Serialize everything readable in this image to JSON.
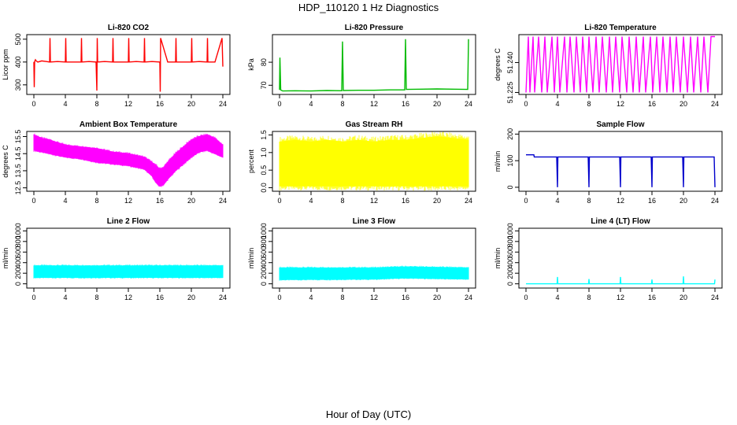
{
  "title": "HDP_110120  1 Hz Diagnostics",
  "xlabel": "Hour of Day (UTC)",
  "chart_data": [
    {
      "type": "line",
      "title": "Li-820 CO2",
      "ylabel": "Licor ppm",
      "color": "#ff0000",
      "xlim": [
        0,
        24
      ],
      "ylim": [
        258,
        520
      ],
      "xticks": [
        "0",
        "4",
        "8",
        "12",
        "16",
        "20",
        "24"
      ],
      "yticks": [
        "300",
        "400",
        "500"
      ],
      "series": [
        {
          "x": [
            0,
            0.05,
            0.1,
            0.2,
            0.3,
            0.5,
            1.0,
            1.6,
            2.0,
            2.05,
            2.1,
            3.0,
            4.0,
            4.05,
            4.1,
            5.0,
            6.0,
            6.05,
            6.1,
            7.0,
            7.9,
            8.0,
            8.05,
            8.1,
            9.0,
            10.0,
            10.05,
            10.1,
            11.0,
            12.0,
            12.05,
            12.1,
            13.0,
            14.0,
            14.05,
            14.1,
            15.0,
            16.0,
            16.05,
            16.1,
            17.0,
            18.0,
            18.05,
            18.1,
            19.0,
            20.0,
            20.05,
            20.1,
            21.0,
            22.0,
            22.05,
            22.1,
            23.0,
            23.9,
            24.0
          ],
          "y": [
            400,
            290,
            402,
            410,
            405,
            400,
            405,
            402,
            400,
            505,
            400,
            402,
            400,
            505,
            400,
            400,
            400,
            505,
            400,
            402,
            400,
            275,
            505,
            400,
            402,
            400,
            505,
            400,
            400,
            400,
            505,
            400,
            402,
            400,
            505,
            400,
            402,
            400,
            270,
            505,
            400,
            400,
            505,
            400,
            400,
            400,
            505,
            400,
            402,
            400,
            505,
            400,
            400,
            505,
            380
          ]
        }
      ]
    },
    {
      "type": "line",
      "title": "Li-820 Pressure",
      "ylabel": "kPa",
      "color": "#00bb00",
      "xlim": [
        0,
        24
      ],
      "ylim": [
        66,
        92
      ],
      "xticks": [
        "0",
        "4",
        "8",
        "12",
        "16",
        "20",
        "24"
      ],
      "yticks": [
        "70",
        "80"
      ],
      "series": [
        {
          "x": [
            0,
            0.05,
            0.15,
            0.4,
            2.0,
            4.0,
            6.0,
            7.9,
            8.0,
            8.1,
            10.0,
            12.0,
            14.0,
            15.9,
            16.0,
            16.1,
            18.0,
            20.0,
            22.0,
            23.9,
            24.0
          ],
          "y": [
            68,
            82,
            68,
            67.5,
            67.6,
            67.5,
            67.7,
            67.6,
            89,
            67.7,
            67.8,
            67.8,
            68,
            68,
            90,
            68.2,
            68.3,
            68.4,
            68.3,
            68.2,
            90
          ]
        }
      ]
    },
    {
      "type": "line",
      "title": "Li-820 Temperature",
      "ylabel": "degrees C",
      "color": "#ff00ff",
      "xlim": [
        0,
        24
      ],
      "ylim": [
        51.224,
        51.254
      ],
      "xticks": [
        "0",
        "4",
        "8",
        "12",
        "16",
        "20",
        "24"
      ],
      "yticks": [
        "51.225",
        "51.240"
      ],
      "series": [
        {
          "x": [
            0,
            0.3,
            0.5,
            0.9,
            1.1,
            1.6,
            2.0,
            2.4,
            2.7,
            3.3,
            3.6,
            4.0,
            4.3,
            4.9,
            5.2,
            5.6,
            6.1,
            6.4,
            6.9,
            7.2,
            7.7,
            8.0,
            8.5,
            8.9,
            9.3,
            9.7,
            10.2,
            10.6,
            11.0,
            11.4,
            11.9,
            12.2,
            12.8,
            13.1,
            13.6,
            14.0,
            14.4,
            14.9,
            15.2,
            15.8,
            16.1,
            16.6,
            17.0,
            17.4,
            17.9,
            18.3,
            18.7,
            19.1,
            19.6,
            20.0,
            20.5,
            20.9,
            21.3,
            21.8,
            22.2,
            22.6,
            23.1,
            23.5,
            24.0
          ],
          "y": [
            51.225,
            51.253,
            51.225,
            51.253,
            51.225,
            51.253,
            51.225,
            51.253,
            51.225,
            51.253,
            51.225,
            51.253,
            51.225,
            51.253,
            51.225,
            51.253,
            51.225,
            51.253,
            51.225,
            51.253,
            51.225,
            51.253,
            51.225,
            51.253,
            51.225,
            51.253,
            51.225,
            51.253,
            51.225,
            51.253,
            51.225,
            51.253,
            51.225,
            51.253,
            51.225,
            51.253,
            51.225,
            51.253,
            51.225,
            51.253,
            51.225,
            51.253,
            51.225,
            51.253,
            51.225,
            51.253,
            51.225,
            51.253,
            51.225,
            51.253,
            51.225,
            51.253,
            51.225,
            51.253,
            51.225,
            51.253,
            51.225,
            51.253,
            51.253
          ]
        }
      ]
    },
    {
      "type": "area",
      "title": "Ambient Box Temperature",
      "ylabel": "degrees C",
      "color": "#ff00ff",
      "xlim": [
        0,
        24
      ],
      "ylim": [
        12.3,
        15.8
      ],
      "xticks": [
        "0",
        "4",
        "8",
        "12",
        "16",
        "20",
        "24"
      ],
      "yticks": [
        "12.5",
        "13.5",
        "14.5",
        "15.5"
      ],
      "series": [
        {
          "name": "upper",
          "x": [
            0,
            1,
            2,
            4,
            6,
            8,
            10,
            12,
            13,
            14,
            15,
            15.5,
            16,
            16.5,
            17,
            18,
            19,
            20,
            21,
            22,
            23,
            24
          ],
          "y": [
            15.6,
            15.4,
            15.3,
            15.0,
            14.9,
            14.8,
            14.6,
            14.5,
            14.4,
            14.3,
            14.0,
            13.8,
            13.6,
            13.7,
            14.0,
            14.5,
            14.9,
            15.3,
            15.5,
            15.6,
            15.4,
            15.0
          ]
        },
        {
          "name": "lower",
          "x": [
            0,
            1,
            2,
            4,
            6,
            8,
            10,
            12,
            13,
            14,
            15,
            15.5,
            16,
            16.5,
            17,
            18,
            19,
            20,
            21,
            22,
            23,
            24
          ],
          "y": [
            14.7,
            14.6,
            14.5,
            14.3,
            14.2,
            14.0,
            13.9,
            13.8,
            13.7,
            13.6,
            13.2,
            12.8,
            12.6,
            12.7,
            13.0,
            13.5,
            13.9,
            14.3,
            14.6,
            14.7,
            14.5,
            14.3
          ]
        }
      ]
    },
    {
      "type": "area",
      "title": "Gas Stream RH",
      "ylabel": "percent",
      "color": "#ffff00",
      "xlim": [
        0,
        24
      ],
      "ylim": [
        -0.1,
        1.6
      ],
      "xticks": [
        "0",
        "4",
        "8",
        "12",
        "16",
        "20",
        "24"
      ],
      "yticks": [
        "0.0",
        "0.5",
        "1.0",
        "1.5"
      ],
      "series": [
        {
          "name": "upper",
          "x": [
            0,
            2,
            4,
            6,
            8,
            10,
            12,
            14,
            16,
            18,
            20,
            22,
            24
          ],
          "y": [
            1.3,
            1.35,
            1.3,
            1.35,
            1.3,
            1.35,
            1.3,
            1.35,
            1.35,
            1.4,
            1.45,
            1.4,
            1.35
          ]
        },
        {
          "name": "lower",
          "x": [
            0,
            2,
            4,
            6,
            8,
            10,
            12,
            14,
            16,
            18,
            20,
            22,
            24
          ],
          "y": [
            0.05,
            0.05,
            0.05,
            0.05,
            0.05,
            0.05,
            0.05,
            0.05,
            0.05,
            0.05,
            0.05,
            0.05,
            0.05
          ]
        }
      ]
    },
    {
      "type": "line",
      "title": "Sample Flow",
      "ylabel": "ml/min",
      "color": "#0000cc",
      "xlim": [
        0,
        24
      ],
      "ylim": [
        -15,
        210
      ],
      "xticks": [
        "0",
        "4",
        "8",
        "12",
        "16",
        "20",
        "24"
      ],
      "yticks": [
        "0",
        "100",
        "200"
      ],
      "series": [
        {
          "x": [
            0,
            1.0,
            1.05,
            3.9,
            4.0,
            4.05,
            7.9,
            8.0,
            8.05,
            11.9,
            12.0,
            12.05,
            15.9,
            16.0,
            16.05,
            19.9,
            20.0,
            20.05,
            23.9,
            24.0
          ],
          "y": [
            122,
            122,
            114,
            114,
            0,
            114,
            114,
            0,
            114,
            114,
            0,
            114,
            114,
            0,
            114,
            114,
            0,
            114,
            114,
            0
          ]
        }
      ]
    },
    {
      "type": "area",
      "title": "Line 2 Flow",
      "ylabel": "ml/min",
      "color": "#00ffff",
      "xlim": [
        0,
        24
      ],
      "ylim": [
        -80,
        1050
      ],
      "xticks": [
        "0",
        "4",
        "8",
        "12",
        "16",
        "20",
        "24"
      ],
      "yticks": [
        "0",
        "200",
        "400",
        "600",
        "800",
        "1000"
      ],
      "series": [
        {
          "name": "upper",
          "x": [
            0,
            24
          ],
          "y": [
            340,
            340
          ]
        },
        {
          "name": "lower",
          "x": [
            0,
            24
          ],
          "y": [
            120,
            120
          ]
        }
      ]
    },
    {
      "type": "area",
      "title": "Line 3 Flow",
      "ylabel": "ml/min",
      "color": "#00ffff",
      "xlim": [
        0,
        24
      ],
      "ylim": [
        -80,
        1050
      ],
      "xticks": [
        "0",
        "4",
        "8",
        "12",
        "16",
        "20",
        "24"
      ],
      "yticks": [
        "0",
        "200",
        "400",
        "600",
        "800",
        "1000"
      ],
      "series": [
        {
          "name": "upper",
          "x": [
            0,
            12,
            16,
            20,
            24
          ],
          "y": [
            300,
            300,
            320,
            310,
            300
          ]
        },
        {
          "name": "lower",
          "x": [
            0,
            12,
            16,
            20,
            24
          ],
          "y": [
            80,
            90,
            110,
            100,
            90
          ]
        }
      ]
    },
    {
      "type": "line",
      "title": "Line 4 (LT) Flow",
      "ylabel": "ml/min",
      "color": "#00ffff",
      "xlim": [
        0,
        24
      ],
      "ylim": [
        -80,
        1050
      ],
      "xticks": [
        "0",
        "4",
        "8",
        "12",
        "16",
        "20",
        "24"
      ],
      "yticks": [
        "0",
        "200",
        "400",
        "600",
        "800",
        "1000"
      ],
      "series": [
        {
          "x": [
            0,
            3.95,
            4.0,
            4.05,
            7.95,
            8.0,
            8.05,
            11.95,
            12.0,
            12.05,
            15.95,
            16.0,
            16.05,
            19.95,
            20.0,
            20.05,
            23.95,
            24.0
          ],
          "y": [
            0,
            0,
            130,
            0,
            0,
            90,
            0,
            0,
            130,
            0,
            0,
            80,
            0,
            0,
            140,
            0,
            0,
            80
          ]
        }
      ]
    }
  ]
}
